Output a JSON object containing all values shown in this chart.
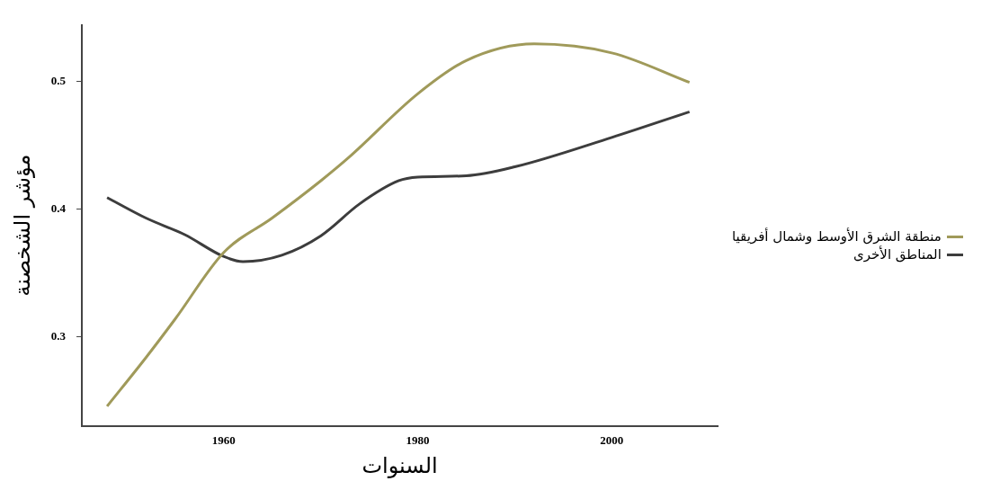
{
  "chart_data": {
    "type": "line",
    "xlabel": "السنوات",
    "ylabel": "مؤشر الشخصنة",
    "xlim": [
      1945.4,
      2010.9
    ],
    "ylim": [
      0.2307,
      0.5438
    ],
    "xticks": [
      1960,
      1980,
      2000
    ],
    "yticks": [
      0.3,
      0.4,
      0.5
    ],
    "grid": false,
    "legend": "right",
    "marker": "none",
    "line_style": "solid",
    "series": [
      {
        "name": "منطقة الشرق الأوسط وشمال أفريقيا",
        "color": "#a09a5a",
        "x": [
          1948,
          1952,
          1955,
          1960,
          1965,
          1970,
          1973,
          1980,
          1985,
          1992,
          2000,
          2008
        ],
        "values": [
          0.246,
          0.284,
          0.314,
          0.366,
          0.393,
          0.422,
          0.441,
          0.49,
          0.516,
          0.529,
          0.522,
          0.499
        ]
      },
      {
        "name": "المناطق الأخرى",
        "color": "#3d3d3d",
        "x": [
          1948,
          1952,
          1956,
          1960,
          1962,
          1966,
          1970,
          1974,
          1978,
          1980,
          1985,
          1990,
          2000,
          2008
        ],
        "values": [
          0.409,
          0.393,
          0.38,
          0.363,
          0.359,
          0.364,
          0.379,
          0.404,
          0.422,
          0.425,
          0.426,
          0.433,
          0.456,
          0.476
        ]
      }
    ]
  }
}
